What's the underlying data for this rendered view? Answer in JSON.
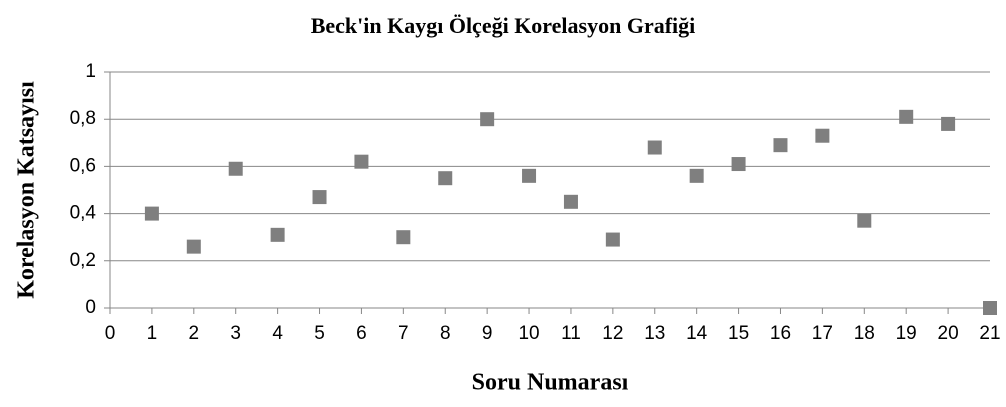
{
  "chart_data": {
    "type": "scatter",
    "title": "Beck'in Kaygı Ölçeği Korelasyon Grafiği",
    "xlabel": "Soru Numarası",
    "ylabel": "Korelasyon Katsayısı",
    "color": "#7f7f7f",
    "grid": true,
    "series": [
      {
        "name": "Korelasyon",
        "x": [
          1,
          2,
          3,
          4,
          5,
          6,
          7,
          8,
          9,
          10,
          11,
          12,
          13,
          14,
          15,
          16,
          17,
          18,
          19,
          20,
          21
        ],
        "values": [
          0.4,
          0.26,
          0.59,
          0.31,
          0.47,
          0.62,
          0.3,
          0.55,
          0.8,
          0.56,
          0.45,
          0.29,
          0.68,
          0.56,
          0.61,
          0.69,
          0.73,
          0.37,
          0.81,
          0.78,
          0
        ]
      }
    ],
    "xlim": [
      0,
      21
    ],
    "xticks": [
      0,
      1,
      2,
      3,
      4,
      5,
      6,
      7,
      8,
      9,
      10,
      11,
      12,
      13,
      14,
      15,
      16,
      17,
      18,
      19,
      20,
      21
    ],
    "ylim": [
      0,
      1
    ],
    "yticks": [
      0,
      {
        "value": 0.2,
        "label": "0,2"
      },
      {
        "value": 0.4,
        "label": "0,4"
      },
      {
        "value": 0.6,
        "label": "0,6"
      },
      {
        "value": 0.8,
        "label": "0,8"
      },
      1
    ]
  }
}
